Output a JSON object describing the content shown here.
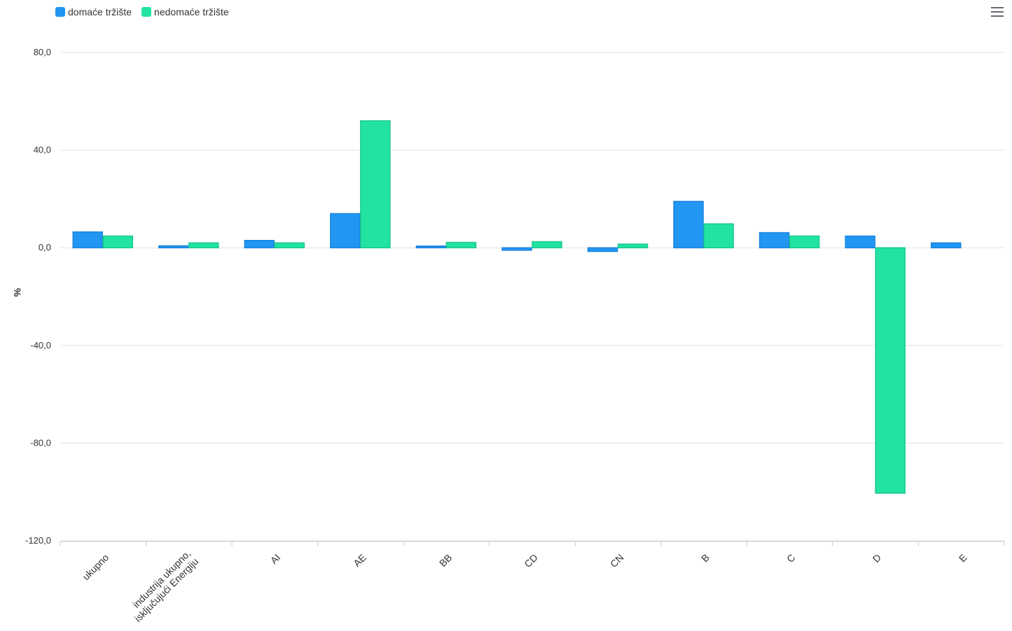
{
  "legend": {
    "series_0": "domaće tržište",
    "series_1": "nedomaće tržište"
  },
  "menu": {
    "icon": "hamburger-menu-icon"
  },
  "colors": {
    "series_0": "#2196f3",
    "series_1": "#22e3a2",
    "series_0_stroke": "#1a84e0",
    "series_1_stroke": "#18c98e",
    "grid": "#e2e2e2",
    "axis_text": "#333333"
  },
  "chart_data": {
    "type": "bar",
    "title": "",
    "xlabel": "",
    "ylabel": "%",
    "ylim": [
      -120,
      80
    ],
    "yticks": [
      80,
      40,
      0,
      -40,
      -80,
      -120
    ],
    "ytick_labels": [
      "80,0",
      "40,0",
      "0,0",
      "-40,0",
      "-80,0",
      "-120,0"
    ],
    "grid": true,
    "legend_position": "top-left",
    "categories": [
      "ukupno",
      "industrija ukupno, isključujući Energiju",
      "AI",
      "AE",
      "BB",
      "CD",
      "CN",
      "B",
      "C",
      "D",
      "E"
    ],
    "category_label_lines": [
      [
        "ukupno"
      ],
      [
        "industrija ukupno,",
        "isključujući Energiju"
      ],
      [
        "AI"
      ],
      [
        "AE"
      ],
      [
        "BB"
      ],
      [
        "CD"
      ],
      [
        "CN"
      ],
      [
        "B"
      ],
      [
        "C"
      ],
      [
        "D"
      ],
      [
        "E"
      ]
    ],
    "series": [
      {
        "name": "domaće tržište",
        "values": [
          6.5,
          0.8,
          3.0,
          14.0,
          0.7,
          -1.0,
          -1.5,
          19.0,
          6.2,
          4.8,
          2.0
        ]
      },
      {
        "name": "nedomaće tržište",
        "values": [
          4.8,
          2.0,
          2.0,
          52.0,
          2.2,
          2.5,
          1.5,
          9.8,
          4.8,
          -100.5,
          null
        ]
      }
    ]
  }
}
